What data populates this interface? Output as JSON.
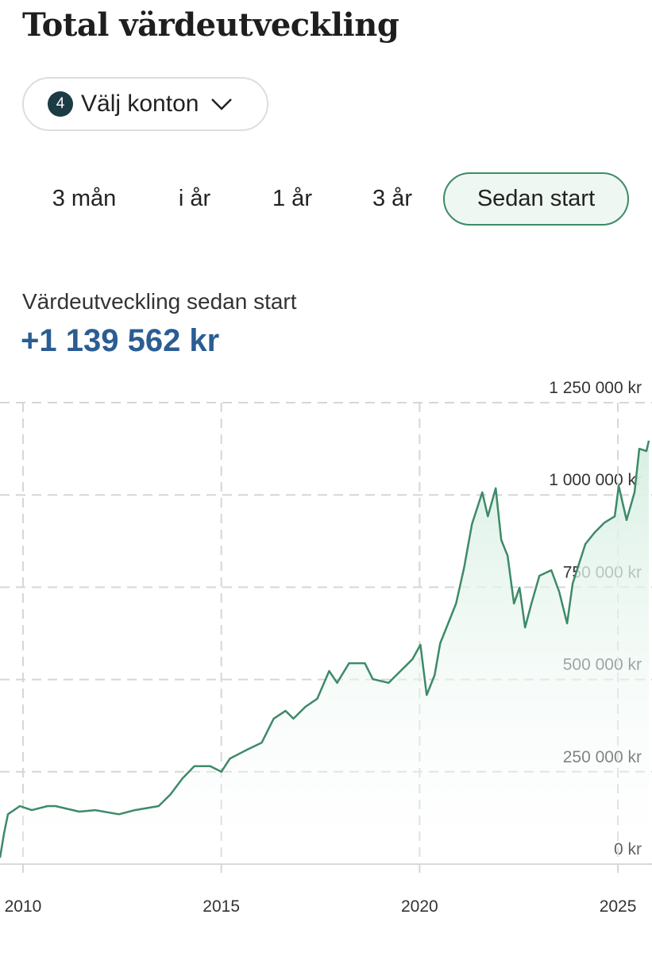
{
  "header": {
    "title": "Total värdeutveckling"
  },
  "account_selector": {
    "badge": "4",
    "label": "Välj konton"
  },
  "tabs": {
    "items": [
      "3 mån",
      "i år",
      "1 år",
      "3 år",
      "Sedan start"
    ],
    "active": 4
  },
  "summary": {
    "label": "Värdeutveckling sedan start",
    "value": "+1 139 562 kr"
  },
  "chart_data": {
    "type": "line",
    "x": [
      2009.42,
      2009.52,
      2009.62,
      2009.92,
      2010.22,
      2010.62,
      2010.82,
      2011.42,
      2011.82,
      2012.42,
      2012.82,
      2013.42,
      2013.72,
      2014.02,
      2014.32,
      2014.72,
      2015.0,
      2015.22,
      2015.62,
      2016.02,
      2016.32,
      2016.62,
      2016.82,
      2017.12,
      2017.42,
      2017.72,
      2017.92,
      2018.22,
      2018.62,
      2018.82,
      2019.22,
      2019.52,
      2019.82,
      2020.02,
      2020.18,
      2020.38,
      2020.52,
      2020.72,
      2020.92,
      2021.12,
      2021.32,
      2021.58,
      2021.72,
      2021.92,
      2022.06,
      2022.22,
      2022.38,
      2022.52,
      2022.66,
      2022.82,
      2023.02,
      2023.32,
      2023.52,
      2023.72,
      2023.86,
      2024.18,
      2024.42,
      2024.66,
      2024.92,
      2025.02,
      2025.22,
      2025.42,
      2025.54,
      2025.72,
      2025.78
    ],
    "series": [
      {
        "color": "#3d8a68",
        "values": [
          17000,
          82000,
          135000,
          157000,
          146000,
          157000,
          157000,
          142000,
          146000,
          135000,
          146000,
          157000,
          189000,
          232000,
          265000,
          265000,
          250000,
          286000,
          308000,
          329000,
          394000,
          415000,
          394000,
          426000,
          448000,
          523000,
          491000,
          544000,
          544000,
          501000,
          491000,
          523000,
          555000,
          594000,
          458000,
          512000,
          598000,
          652000,
          706000,
          802000,
          921000,
          1007000,
          942000,
          1018000,
          878000,
          835000,
          706000,
          749000,
          641000,
          706000,
          781000,
          796000,
          738000,
          652000,
          760000,
          867000,
          899000,
          925000,
          942000,
          1024000,
          932000,
          1007000,
          1125000,
          1119000,
          1147000
        ]
      }
    ],
    "xlim": [
      2009.42,
      2025.86
    ],
    "xticks": [
      2010,
      2015,
      2020,
      2025
    ],
    "ylim": [
      0,
      1250000
    ],
    "yticks": [
      {
        "value": 0,
        "label": "0 kr"
      },
      {
        "value": 250000,
        "label": "250 000 kr"
      },
      {
        "value": 500000,
        "label": "500 000 kr"
      },
      {
        "value": 750000,
        "label": "750 000 kr"
      },
      {
        "value": 1000000,
        "label": "1 000 000 kr"
      },
      {
        "value": 1250000,
        "label": "1 250 000 kr"
      }
    ],
    "grid": true
  }
}
